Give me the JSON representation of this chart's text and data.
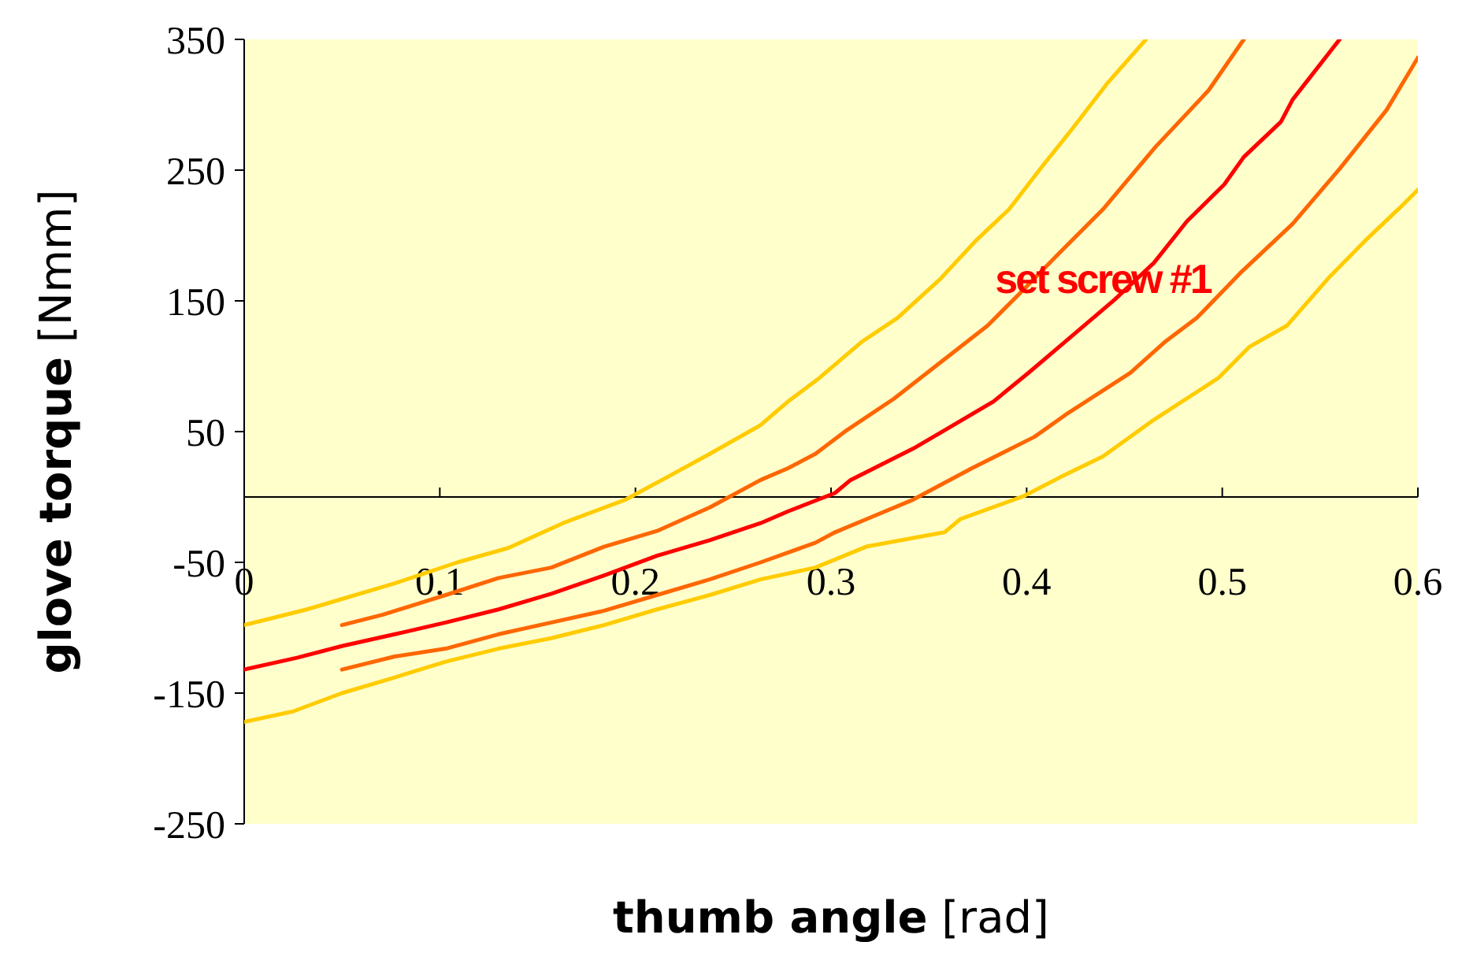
{
  "chart_data": {
    "type": "line",
    "xlabel": "thumb angle [rad]",
    "ylabel": "glove torque [Nmm]",
    "xlim": [
      0,
      0.6
    ],
    "xticks": [
      0,
      0.1,
      0.2,
      0.3,
      0.4,
      0.5,
      0.6
    ],
    "ylim": [
      -250,
      350
    ],
    "yticks": [
      -250,
      -150,
      -50,
      50,
      150,
      250,
      350
    ],
    "grid": false,
    "marker": "none",
    "line_style": "solid",
    "annotations": [
      "set screw #1"
    ],
    "series": [
      {
        "color": "#ffcc00",
        "x": [
          0,
          0.016,
          0.032,
          0.05,
          0.077,
          0.109,
          0.135,
          0.163,
          0.195,
          0.216,
          0.238,
          0.264,
          0.278,
          0.294,
          0.316,
          0.334,
          0.356,
          0.374,
          0.391,
          0.407,
          0.423,
          0.441,
          0.461
        ],
        "values": [
          -98,
          -92,
          -86,
          -78,
          -66,
          -50,
          -39,
          -20,
          -2,
          15,
          33,
          55,
          73,
          91,
          119,
          137,
          167,
          196,
          220,
          251,
          281,
          316,
          350
        ]
      },
      {
        "color": "#ff6600",
        "x": [
          0.05,
          0.071,
          0.103,
          0.13,
          0.157,
          0.184,
          0.211,
          0.238,
          0.264,
          0.278,
          0.292,
          0.308,
          0.332,
          0.356,
          0.38,
          0.396,
          0.417,
          0.439,
          0.466,
          0.493,
          0.511
        ],
        "values": [
          -98,
          -90,
          -75,
          -62,
          -54,
          -38,
          -26,
          -8,
          13,
          22,
          33,
          51,
          75,
          103,
          131,
          155,
          187,
          220,
          268,
          311,
          350
        ]
      },
      {
        "color": "#ff0000",
        "x": [
          0,
          0.027,
          0.05,
          0.077,
          0.103,
          0.13,
          0.157,
          0.184,
          0.211,
          0.238,
          0.264,
          0.278,
          0.302,
          0.31,
          0.342,
          0.358,
          0.383,
          0.401,
          0.423,
          0.445,
          0.465,
          0.482,
          0.501,
          0.511,
          0.53,
          0.536,
          0.56
        ],
        "values": [
          -132,
          -123,
          -114,
          -105,
          -96,
          -86,
          -74,
          -60,
          -45,
          -33,
          -20,
          -11,
          3,
          13,
          37,
          51,
          73,
          95,
          123,
          151,
          179,
          211,
          239,
          260,
          287,
          304,
          350
        ]
      },
      {
        "color": "#ff6600",
        "x": [
          0.05,
          0.077,
          0.103,
          0.13,
          0.157,
          0.184,
          0.211,
          0.238,
          0.264,
          0.292,
          0.302,
          0.318,
          0.342,
          0.372,
          0.404,
          0.42,
          0.453,
          0.471,
          0.487,
          0.509,
          0.536,
          0.56,
          0.584,
          0.6
        ],
        "values": [
          -132,
          -122,
          -116,
          -105,
          -96,
          -87,
          -75,
          -63,
          -50,
          -35,
          -27,
          -17,
          -2,
          22,
          46,
          63,
          95,
          119,
          137,
          171,
          209,
          251,
          296,
          336
        ]
      },
      {
        "color": "#ffcc00",
        "x": [
          0,
          0.025,
          0.05,
          0.077,
          0.103,
          0.13,
          0.157,
          0.184,
          0.211,
          0.238,
          0.264,
          0.292,
          0.318,
          0.358,
          0.366,
          0.399,
          0.417,
          0.439,
          0.465,
          0.498,
          0.514,
          0.533,
          0.554,
          0.573,
          0.592,
          0.6
        ],
        "values": [
          -172,
          -164,
          -150,
          -138,
          -126,
          -116,
          -108,
          -98,
          -86,
          -75,
          -63,
          -54,
          -38,
          -27,
          -17,
          1,
          15,
          31,
          59,
          91,
          115,
          131,
          167,
          196,
          223,
          235
        ]
      }
    ]
  }
}
